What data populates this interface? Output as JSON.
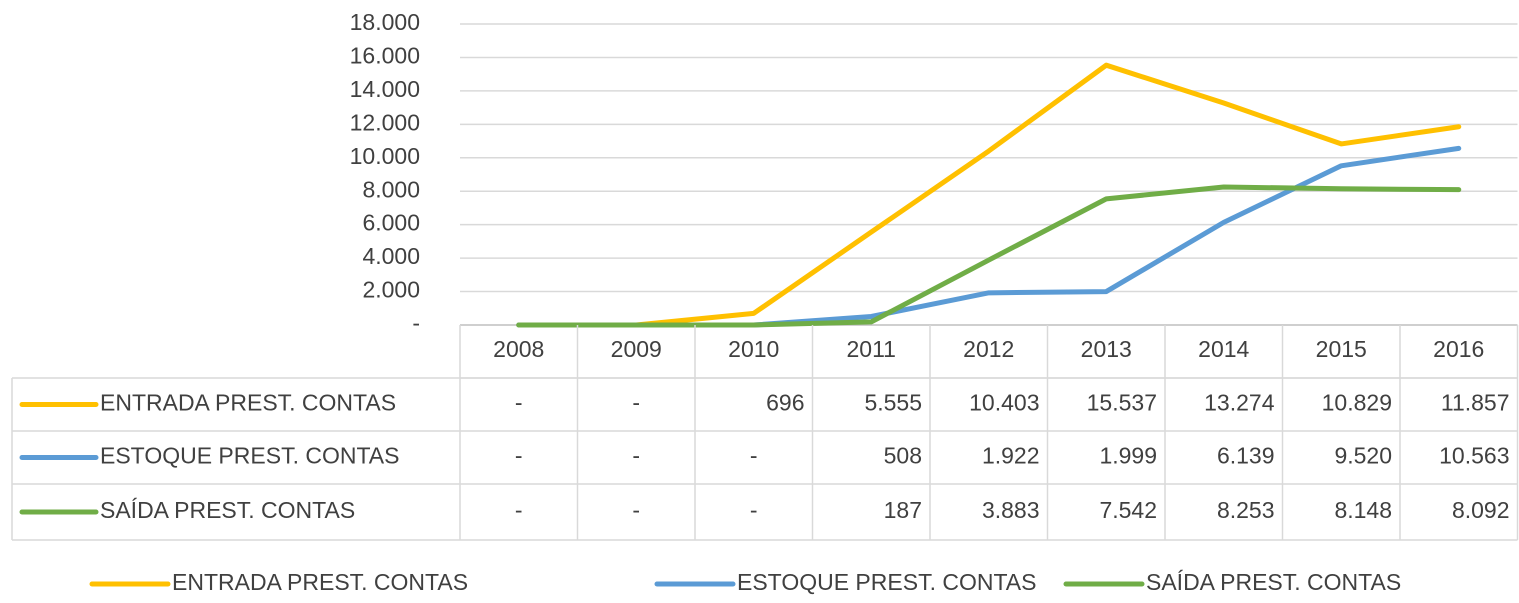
{
  "chart_data": {
    "type": "line",
    "categories": [
      "2008",
      "2009",
      "2010",
      "2011",
      "2012",
      "2013",
      "2014",
      "2015",
      "2016"
    ],
    "series": [
      {
        "name": "ENTRADA PREST. CONTAS",
        "color": "#FFC000",
        "values": [
          0,
          0,
          696,
          5555,
          10403,
          15537,
          13274,
          10829,
          11857
        ],
        "value_labels": [
          "-",
          "-",
          "696",
          "5.555",
          "10.403",
          "15.537",
          "13.274",
          "10.829",
          "11.857"
        ]
      },
      {
        "name": "ESTOQUE PREST. CONTAS",
        "color": "#5B9BD5",
        "values": [
          0,
          0,
          0,
          508,
          1922,
          1999,
          6139,
          9520,
          10563
        ],
        "value_labels": [
          "-",
          "-",
          "-",
          "508",
          "1.922",
          "1.999",
          "6.139",
          "9.520",
          "10.563"
        ]
      },
      {
        "name": "SAÍDA PREST. CONTAS",
        "color": "#70AD47",
        "values": [
          0,
          0,
          0,
          187,
          3883,
          7542,
          8253,
          8148,
          8092
        ],
        "value_labels": [
          "-",
          "-",
          "-",
          "187",
          "3.883",
          "7.542",
          "8.253",
          "8.148",
          "8.092"
        ]
      }
    ],
    "ylim": [
      0,
      18000
    ],
    "yticks": [
      {
        "value": 0,
        "label": "-"
      },
      {
        "value": 2000,
        "label": "2.000"
      },
      {
        "value": 4000,
        "label": "4.000"
      },
      {
        "value": 6000,
        "label": "6.000"
      },
      {
        "value": 8000,
        "label": "8.000"
      },
      {
        "value": 10000,
        "label": "10.000"
      },
      {
        "value": 12000,
        "label": "12.000"
      },
      {
        "value": 14000,
        "label": "14.000"
      },
      {
        "value": 16000,
        "label": "16.000"
      },
      {
        "value": 18000,
        "label": "18.000"
      }
    ],
    "grid": true,
    "data_table": true,
    "legend": "bottom"
  }
}
